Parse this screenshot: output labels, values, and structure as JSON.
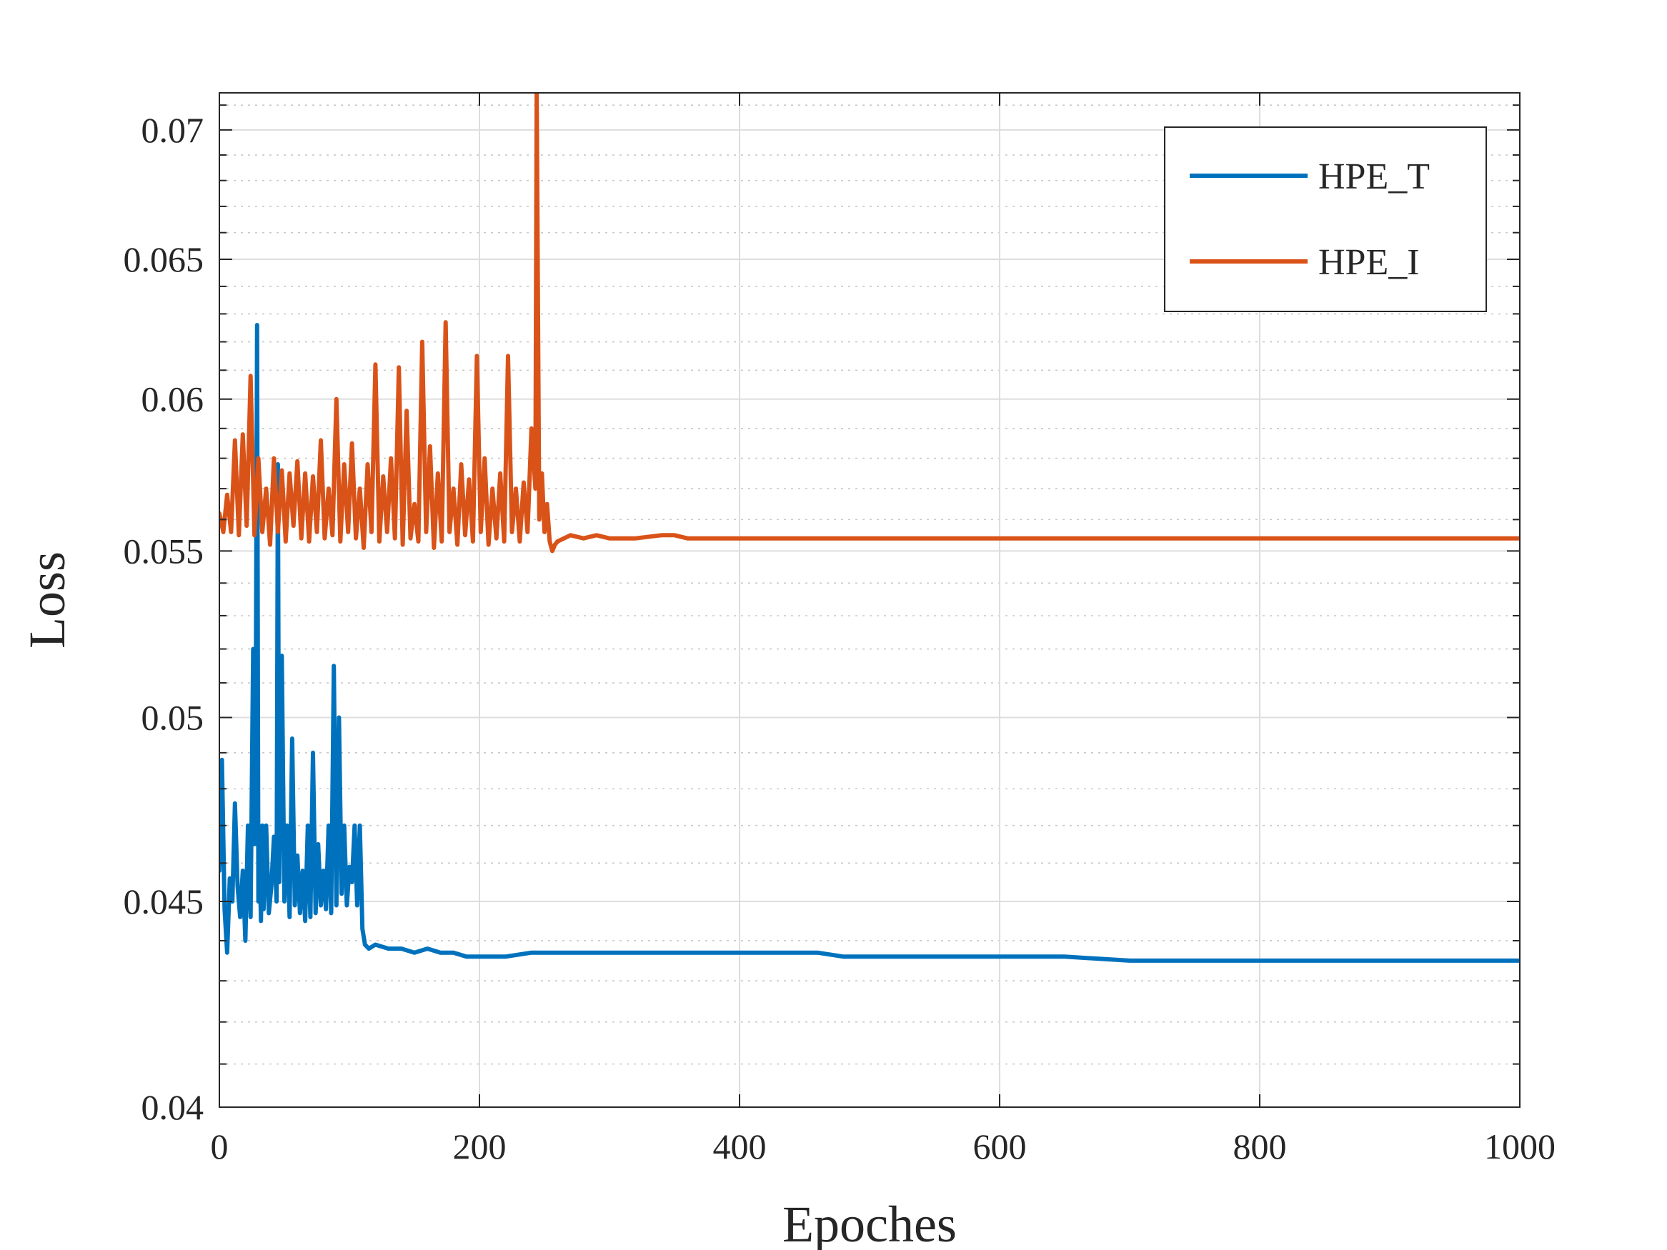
{
  "chart_data": {
    "type": "line",
    "xlabel": "Epoches",
    "ylabel": "Loss",
    "xlim": [
      0,
      1000
    ],
    "ylim": [
      0.04,
      0.0715
    ],
    "yscale": "log",
    "grid": true,
    "minor_grid": true,
    "legend_position": "top-right",
    "x_ticks": [
      0,
      200,
      400,
      600,
      800,
      1000
    ],
    "x_tick_labels": [
      "0",
      "200",
      "400",
      "600",
      "800",
      "1000"
    ],
    "y_ticks": [
      0.04,
      0.045,
      0.05,
      0.055,
      0.06,
      0.065,
      0.07
    ],
    "y_tick_labels": [
      "0.04",
      "0.045",
      "0.05",
      "0.055",
      "0.06",
      "0.065",
      "0.07"
    ],
    "y_minor_ticks": [
      0.041,
      0.042,
      0.043,
      0.044,
      0.046,
      0.047,
      0.048,
      0.049,
      0.051,
      0.052,
      0.053,
      0.054,
      0.056,
      0.057,
      0.058,
      0.059,
      0.061,
      0.062,
      0.063,
      0.064,
      0.066,
      0.067,
      0.068,
      0.069,
      0.071
    ],
    "series": [
      {
        "name": "HPE_T",
        "color": "#0072BD",
        "x": [
          0,
          2,
          4,
          6,
          8,
          10,
          12,
          14,
          16,
          18,
          20,
          22,
          24,
          26,
          27,
          28,
          29,
          30,
          31,
          32,
          33,
          34,
          36,
          38,
          40,
          42,
          44,
          45,
          46,
          48,
          50,
          52,
          54,
          56,
          58,
          60,
          62,
          64,
          66,
          68,
          70,
          72,
          74,
          76,
          78,
          80,
          82,
          84,
          86,
          88,
          90,
          92,
          94,
          96,
          98,
          100,
          102,
          104,
          106,
          108,
          110,
          112,
          115,
          120,
          130,
          140,
          150,
          160,
          170,
          180,
          190,
          200,
          220,
          240,
          260,
          280,
          300,
          320,
          340,
          360,
          380,
          400,
          420,
          440,
          460,
          480,
          500,
          550,
          600,
          650,
          700,
          750,
          800,
          850,
          900,
          950,
          1000
        ],
        "y": [
          0.0458,
          0.0488,
          0.0448,
          0.0437,
          0.0456,
          0.045,
          0.0476,
          0.0454,
          0.0446,
          0.0458,
          0.044,
          0.047,
          0.0446,
          0.052,
          0.0465,
          0.0505,
          0.0626,
          0.045,
          0.0462,
          0.0445,
          0.047,
          0.0448,
          0.047,
          0.0447,
          0.0454,
          0.0467,
          0.045,
          0.0578,
          0.0455,
          0.0518,
          0.045,
          0.047,
          0.0446,
          0.0494,
          0.0449,
          0.0462,
          0.0447,
          0.0458,
          0.0445,
          0.047,
          0.0446,
          0.049,
          0.0447,
          0.0465,
          0.0449,
          0.0458,
          0.0448,
          0.047,
          0.0447,
          0.0515,
          0.0449,
          0.05,
          0.0452,
          0.047,
          0.0449,
          0.0459,
          0.0455,
          0.047,
          0.0449,
          0.047,
          0.0443,
          0.0439,
          0.0438,
          0.0439,
          0.0438,
          0.0438,
          0.0437,
          0.0438,
          0.0437,
          0.0437,
          0.0436,
          0.0436,
          0.0436,
          0.0437,
          0.0437,
          0.0437,
          0.0437,
          0.0437,
          0.0437,
          0.0437,
          0.0437,
          0.0437,
          0.0437,
          0.0437,
          0.0437,
          0.0436,
          0.0436,
          0.0436,
          0.0436,
          0.0436,
          0.0435,
          0.0435,
          0.0435,
          0.0435,
          0.0435,
          0.0435,
          0.0435
        ]
      },
      {
        "name": "HPE_I",
        "color": "#D95319",
        "x": [
          0,
          3,
          6,
          9,
          12,
          15,
          18,
          21,
          24,
          27,
          30,
          33,
          36,
          39,
          42,
          45,
          48,
          51,
          54,
          57,
          60,
          63,
          66,
          69,
          72,
          75,
          78,
          81,
          84,
          87,
          90,
          93,
          96,
          99,
          102,
          105,
          108,
          111,
          114,
          117,
          120,
          123,
          126,
          129,
          132,
          135,
          138,
          141,
          144,
          147,
          150,
          153,
          156,
          159,
          162,
          165,
          168,
          171,
          174,
          177,
          180,
          183,
          186,
          189,
          192,
          195,
          198,
          201,
          204,
          207,
          210,
          213,
          216,
          219,
          222,
          225,
          228,
          231,
          234,
          237,
          240,
          243,
          244,
          246,
          248,
          250,
          252,
          254,
          256,
          258,
          260,
          265,
          270,
          280,
          290,
          300,
          320,
          340,
          350,
          360,
          400,
          450,
          500,
          550,
          600,
          650,
          700,
          750,
          800,
          850,
          900,
          950,
          1000
        ],
        "y": [
          0.0562,
          0.0556,
          0.0568,
          0.0556,
          0.0586,
          0.0555,
          0.0588,
          0.0558,
          0.0608,
          0.0555,
          0.058,
          0.0556,
          0.057,
          0.0552,
          0.058,
          0.0556,
          0.0576,
          0.0553,
          0.0575,
          0.0558,
          0.0579,
          0.0554,
          0.0575,
          0.0553,
          0.0574,
          0.0556,
          0.0586,
          0.0554,
          0.057,
          0.0555,
          0.06,
          0.0553,
          0.0578,
          0.0556,
          0.0585,
          0.0554,
          0.057,
          0.0551,
          0.0578,
          0.0556,
          0.0612,
          0.0553,
          0.0574,
          0.0556,
          0.058,
          0.0554,
          0.0611,
          0.0552,
          0.0596,
          0.0554,
          0.0565,
          0.0553,
          0.062,
          0.0556,
          0.0584,
          0.0551,
          0.0575,
          0.0553,
          0.0627,
          0.0556,
          0.057,
          0.0552,
          0.0578,
          0.0555,
          0.0573,
          0.0553,
          0.0615,
          0.0556,
          0.058,
          0.0552,
          0.057,
          0.0554,
          0.0575,
          0.0553,
          0.0615,
          0.0556,
          0.057,
          0.0553,
          0.0572,
          0.0556,
          0.059,
          0.057,
          0.0715,
          0.056,
          0.0575,
          0.0556,
          0.0565,
          0.0553,
          0.055,
          0.0552,
          0.0553,
          0.0554,
          0.0555,
          0.0554,
          0.0555,
          0.0554,
          0.0554,
          0.0555,
          0.0555,
          0.0554,
          0.0554,
          0.0554,
          0.0554,
          0.0554,
          0.0554,
          0.0554,
          0.0554,
          0.0554,
          0.0554,
          0.0554,
          0.0554,
          0.0554,
          0.0554
        ]
      }
    ]
  }
}
